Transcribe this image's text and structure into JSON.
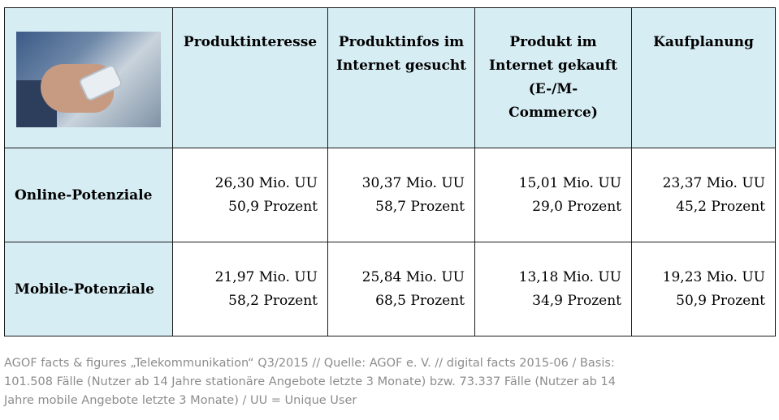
{
  "table": {
    "headers": [
      "Produktinteresse",
      "Produktinfos im Internet gesucht",
      "Produkt im Internet gekauft (E-/M-Commerce)",
      "Kaufplanung"
    ],
    "header_lines": [
      [
        "Produktinteresse"
      ],
      [
        "Produktinfos im",
        "Internet gesucht"
      ],
      [
        "Produkt im",
        "Internet gekauft",
        "(E-/M-",
        "Commerce)"
      ],
      [
        "Kaufplanung"
      ]
    ],
    "rows": [
      {
        "label": "Online-Potenziale",
        "cells": [
          {
            "uu": "26,30 Mio. UU",
            "pct": "50,9 Prozent"
          },
          {
            "uu": "30,37 Mio. UU",
            "pct": "58,7 Prozent"
          },
          {
            "uu": "15,01 Mio. UU",
            "pct": "29,0 Prozent"
          },
          {
            "uu": "23,37 Mio. UU",
            "pct": "45,2 Prozent"
          }
        ]
      },
      {
        "label": "Mobile-Potenziale",
        "cells": [
          {
            "uu": "21,97 Mio. UU",
            "pct": "58,2 Prozent"
          },
          {
            "uu": "25,84 Mio. UU",
            "pct": "68,5 Prozent"
          },
          {
            "uu": "13,18 Mio. UU",
            "pct": "34,9 Prozent"
          },
          {
            "uu": "19,23 Mio. UU",
            "pct": "50,9 Prozent"
          }
        ]
      }
    ]
  },
  "footer": {
    "line1": "AGOF facts & figures „Telekommunikation“ Q3/2015 // Quelle: AGOF e. V. // digital facts 2015-06 / Basis:",
    "line2": "101.508 Fälle (Nutzer ab 14 Jahre stationäre Angebote letzte 3 Monate) bzw. 73.337 Fälle (Nutzer ab 14",
    "line3": "Jahre mobile Angebote letzte 3 Monate) / UU = Unique User"
  },
  "colors": {
    "header_bg": "#d7edf4",
    "border": "#1a1a1a",
    "footer_text": "#8c8c8c"
  }
}
